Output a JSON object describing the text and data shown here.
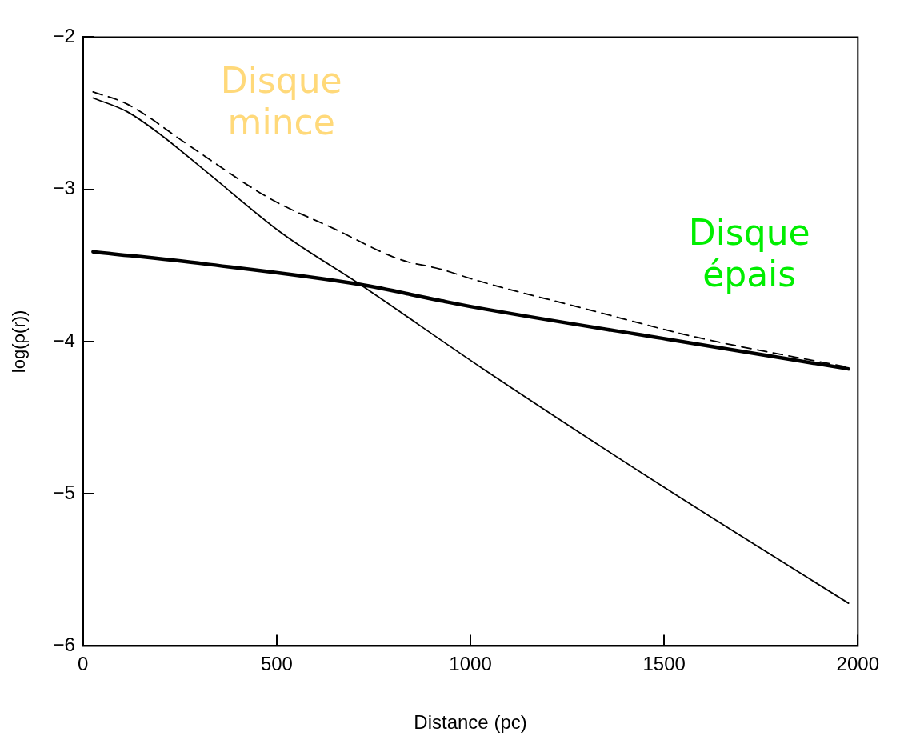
{
  "chart_data": {
    "type": "line",
    "xlabel": "Distance (pc)",
    "ylabel": "log(ρ(r))",
    "xlim": [
      0,
      2000
    ],
    "ylim": [
      -6,
      -2
    ],
    "xticks": [
      0,
      500,
      1000,
      1500,
      2000
    ],
    "yticks": [
      -6,
      -5,
      -4,
      -3,
      -2
    ],
    "grid": false,
    "legend": false,
    "marker": "none",
    "series": [
      {
        "color": "#000000",
        "line_style": "solid",
        "x": [
          26,
          114,
          200,
          314,
          514,
          715,
          1030,
          1498,
          1976
        ],
        "values": [
          -2.4,
          -2.49,
          -2.64,
          -2.875,
          -3.29,
          -3.625,
          -4.175,
          -4.955,
          -5.72
        ]
      },
      {
        "color": "#000000",
        "line_style": "solid",
        "x": [
          26,
          314,
          715,
          920,
          1000,
          1508,
          1976
        ],
        "values": [
          -3.41,
          -3.49,
          -3.625,
          -3.73,
          -3.77,
          -3.985,
          -4.18
        ]
      },
      {
        "color": "#000000",
        "line_style": "dashed",
        "x": [
          26,
          114,
          281,
          482,
          649,
          817,
          924,
          1018,
          1289,
          1580,
          1976
        ],
        "values": [
          -2.36,
          -2.44,
          -2.725,
          -3.06,
          -3.26,
          -3.46,
          -3.525,
          -3.6,
          -3.78,
          -3.97,
          -4.17
        ]
      }
    ],
    "annotations": [
      "Disque mince",
      "Disque épais"
    ]
  }
}
